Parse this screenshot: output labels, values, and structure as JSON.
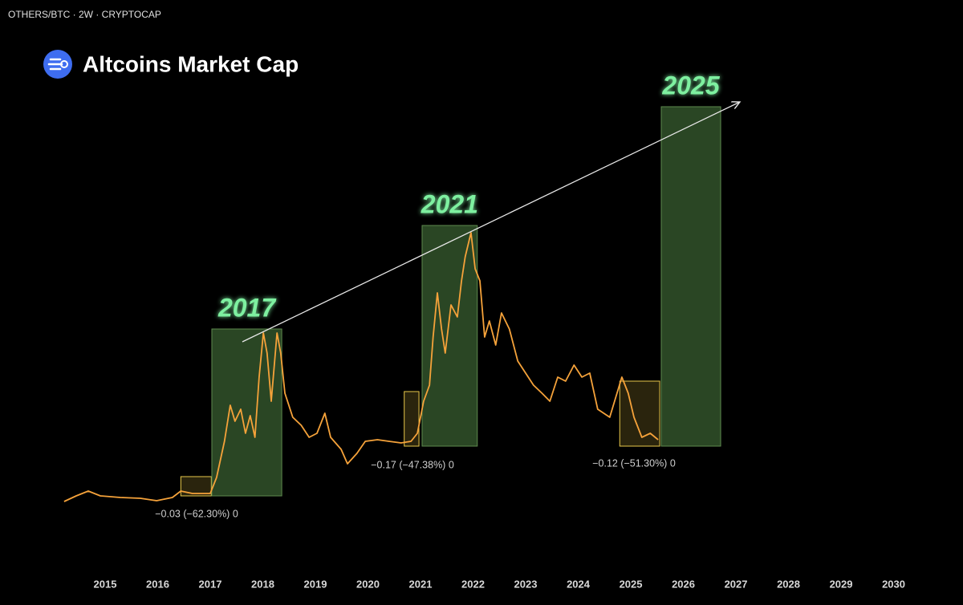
{
  "chart_data": {
    "type": "line",
    "header": "OTHERS/BTC · 2W · CRYPTOCAP",
    "title": "Altcoins Market Cap",
    "annotations": [
      "−0.03 (−62.30%) 0",
      "−0.17 (−47.38%) 0",
      "−0.12 (−51.30%) 0"
    ],
    "xlim": [
      2013,
      2031.32
    ],
    "xticks": [
      2015,
      2016,
      2017,
      2018,
      2019,
      2020,
      2021,
      2022,
      2023,
      2024,
      2025,
      2026,
      2027,
      2028,
      2029,
      2030
    ],
    "ylim": [
      0,
      0.754
    ],
    "series": [
      {
        "color": "#f5a23a",
        "x": [
          2014.22,
          2014.45,
          2014.68,
          2014.91,
          2015.29,
          2015.67,
          2015.98,
          2016.28,
          2016.44,
          2016.66,
          2017.0,
          2017.12,
          2017.27,
          2017.38,
          2017.47,
          2017.58,
          2017.67,
          2017.76,
          2017.85,
          2017.93,
          2018.01,
          2018.08,
          2018.16,
          2018.27,
          2018.34,
          2018.42,
          2018.57,
          2018.73,
          2018.88,
          2019.03,
          2019.18,
          2019.29,
          2019.49,
          2019.61,
          2019.79,
          2019.95,
          2020.18,
          2020.4,
          2020.63,
          2020.82,
          2020.94,
          2021.06,
          2021.17,
          2021.24,
          2021.32,
          2021.4,
          2021.47,
          2021.58,
          2021.7,
          2021.78,
          2021.85,
          2021.96,
          2022.04,
          2022.13,
          2022.22,
          2022.31,
          2022.43,
          2022.54,
          2022.69,
          2022.85,
          2023.0,
          2023.15,
          2023.31,
          2023.46,
          2023.61,
          2023.76,
          2023.92,
          2024.07,
          2024.22,
          2024.37,
          2024.6,
          2024.83,
          2024.95,
          2025.06,
          2025.21,
          2025.37,
          2025.52
        ],
        "values": [
          0.129,
          0.136,
          0.142,
          0.136,
          0.134,
          0.133,
          0.13,
          0.134,
          0.142,
          0.139,
          0.139,
          0.159,
          0.204,
          0.249,
          0.229,
          0.244,
          0.214,
          0.236,
          0.209,
          0.284,
          0.339,
          0.314,
          0.254,
          0.339,
          0.314,
          0.264,
          0.234,
          0.224,
          0.209,
          0.214,
          0.239,
          0.209,
          0.194,
          0.176,
          0.189,
          0.204,
          0.206,
          0.204,
          0.202,
          0.204,
          0.214,
          0.254,
          0.274,
          0.334,
          0.389,
          0.344,
          0.314,
          0.374,
          0.359,
          0.404,
          0.434,
          0.464,
          0.419,
          0.404,
          0.334,
          0.354,
          0.324,
          0.364,
          0.344,
          0.304,
          0.289,
          0.274,
          0.264,
          0.254,
          0.284,
          0.279,
          0.299,
          0.284,
          0.289,
          0.244,
          0.234,
          0.284,
          0.264,
          0.234,
          0.209,
          0.214,
          0.206
        ]
      }
    ],
    "boxes": [
      {
        "label": "2017",
        "color": "#2c4a26",
        "x": [
          2017.03,
          2018.36
        ],
        "y": [
          0.136,
          0.344
        ]
      },
      {
        "label": "2021",
        "color": "#2c4a26",
        "x": [
          2021.03,
          2022.08
        ],
        "y": [
          0.198,
          0.473
        ]
      },
      {
        "label": "2025",
        "color": "#2c4a26",
        "x": [
          2025.58,
          2026.71
        ],
        "y": [
          0.198,
          0.621
        ]
      }
    ],
    "ranges": [
      {
        "color": "#e8c84a",
        "x": [
          2016.44,
          2017.02
        ],
        "y": [
          0.136,
          0.16
        ]
      },
      {
        "color": "#e8c84a",
        "x": [
          2020.69,
          2020.97
        ],
        "y": [
          0.198,
          0.266
        ]
      },
      {
        "color": "#e8c84a",
        "x": [
          2024.79,
          2025.55
        ],
        "y": [
          0.198,
          0.279
        ]
      }
    ]
  }
}
